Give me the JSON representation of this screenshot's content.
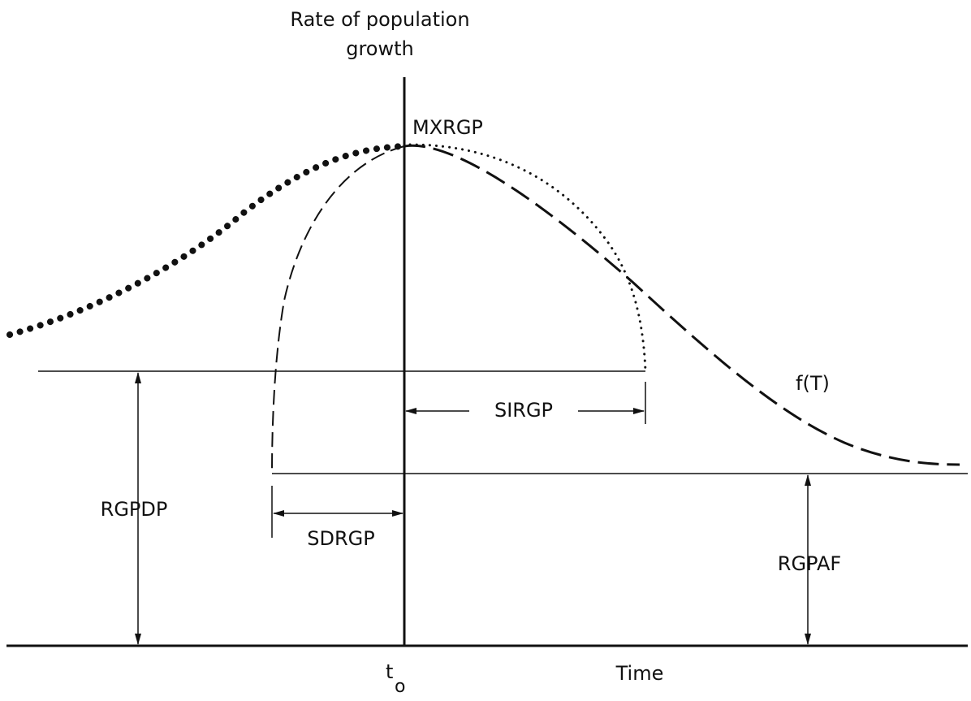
{
  "diagram": {
    "axis_label": [
      "Rate of population",
      "growth"
    ],
    "peak_label": "MXRGP",
    "curve_label": "f(T)",
    "sirgp_label": "SIRGP",
    "sdrgp_label": "SDRGP",
    "rgpdp_label": "RGPDP",
    "rgpaf_label": "RGPAF",
    "t0_label": {
      "main": "t",
      "subscript": "o"
    },
    "time_label": "Time"
  }
}
